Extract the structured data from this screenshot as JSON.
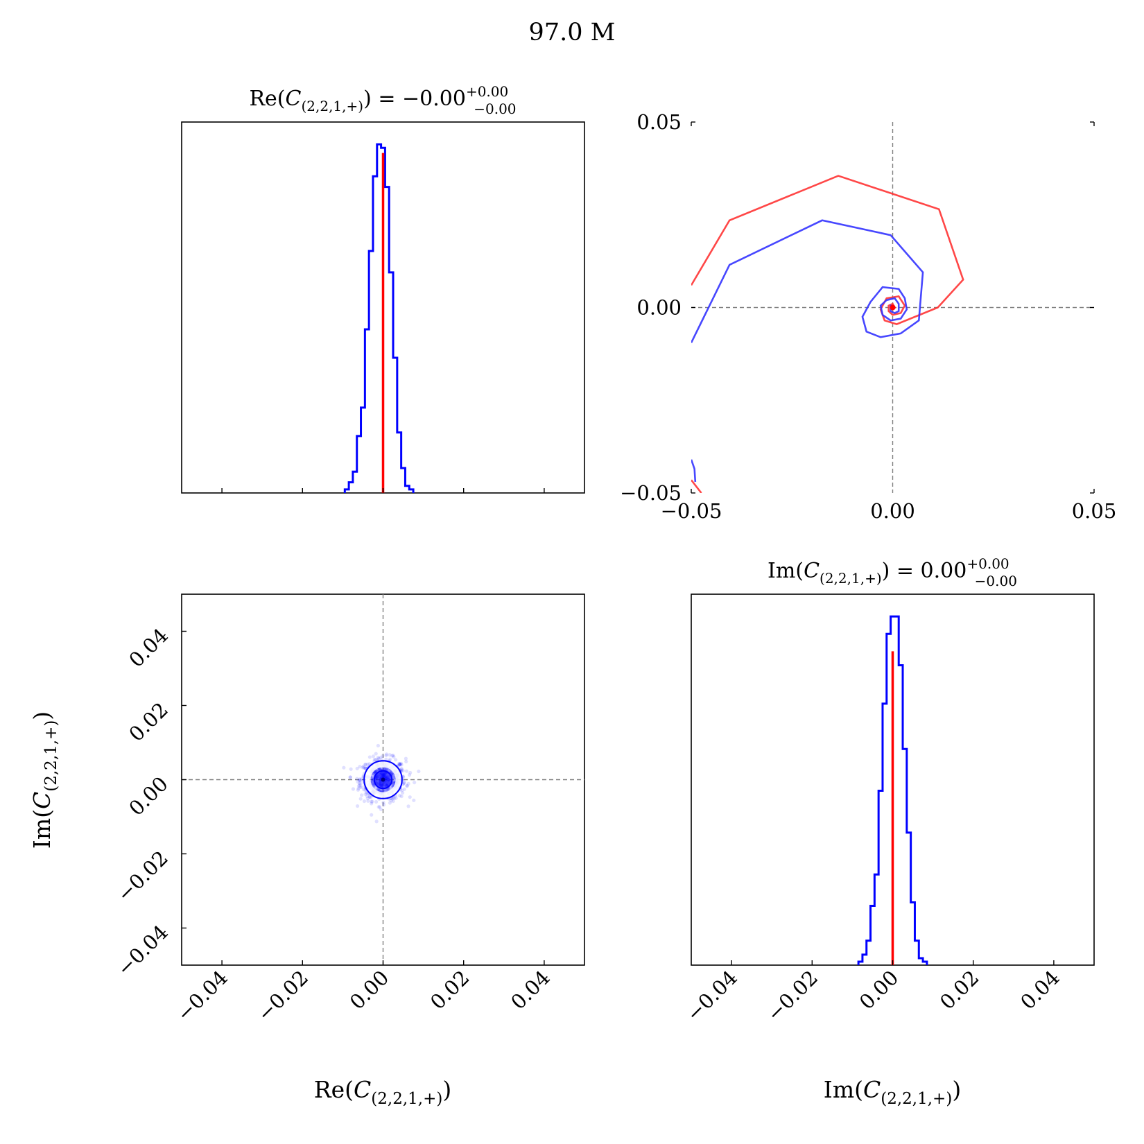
{
  "figure_title": "97.0 M",
  "labels": {
    "re": "Re(C(2,2,1,+))",
    "im": "Im(C(2,2,1,+))"
  },
  "titles": {
    "re": "Re(C(2,2,1,+)) = -0.00 +0.00 -0.00",
    "im": "Im(C(2,2,1,+)) = 0.00 +0.00 -0.00"
  },
  "colors": {
    "hist": "#0000ff",
    "truth": "#ff0000",
    "path_red": "#ff3333",
    "path_blue": "#3333ff",
    "guide": "#808080",
    "scatter": "#0000ff"
  },
  "chart_data": [
    {
      "type": "histogram",
      "panel": "top-left",
      "variable": "Re(C(2,2,1,+))",
      "title": "Re(C(2,2,1,+)) = -0.00 +0.00 -0.00",
      "xlim": [
        -0.05,
        0.05
      ],
      "xticks": [
        -0.04,
        -0.02,
        0.0,
        0.02,
        0.04
      ],
      "show_tick_labels": false,
      "bin_edges_start": -0.0095,
      "bin_width": 0.001,
      "counts": [
        1,
        3,
        6,
        16,
        24,
        46,
        68,
        89,
        98,
        97,
        86,
        62,
        38,
        17,
        7,
        2,
        1
      ],
      "truth": 0.0,
      "truth_height": 0.975
    },
    {
      "type": "line",
      "panel": "top-right",
      "xlim": [
        -0.05,
        0.05
      ],
      "ylim": [
        -0.05,
        0.05
      ],
      "xticks": [
        "-0.05",
        "0.00",
        "0.05"
      ],
      "yticks": [
        "-0.05",
        "0.00",
        "0.05"
      ],
      "series": [
        {
          "color": "red",
          "x": [
            -0.05,
            -0.0405,
            -0.0135,
            0.0115,
            0.0175,
            0.0112,
            0.001,
            -0.002,
            -0.003,
            -0.0015,
            0.0015,
            0.003,
            0.002,
            0.0,
            -0.001,
            -0.001,
            0.0,
            0.0005,
            0.0
          ],
          "y": [
            0.006,
            0.0235,
            0.0355,
            0.0265,
            0.0075,
            0.0,
            -0.0045,
            -0.0035,
            -0.0005,
            0.0025,
            0.003,
            0.0005,
            -0.0015,
            -0.002,
            -0.001,
            0.0005,
            0.001,
            0.0,
            0.0
          ]
        },
        {
          "color": "red",
          "x": [
            -0.05,
            -0.0475
          ],
          "y": [
            -0.0465,
            -0.05
          ]
        },
        {
          "color": "blue",
          "x": [
            -0.05,
            -0.0405,
            -0.0175,
            -0.0005,
            0.0075,
            0.0065,
            0.002,
            -0.003,
            -0.0065,
            -0.0075,
            -0.0055,
            -0.0025,
            0.0015,
            0.003,
            0.0035,
            0.002,
            -0.0005,
            -0.0025,
            -0.003,
            -0.0015,
            0.0005,
            0.0015,
            0.0015,
            0.0005,
            -0.0005,
            -0.0005,
            0.0
          ],
          "y": [
            -0.0095,
            0.0115,
            0.0235,
            0.0195,
            0.0095,
            -0.0035,
            -0.007,
            -0.008,
            -0.0065,
            -0.0025,
            0.0015,
            0.0055,
            0.005,
            0.0025,
            -0.0005,
            -0.003,
            -0.0035,
            -0.002,
            0.0005,
            0.002,
            0.0025,
            0.001,
            -0.001,
            -0.0015,
            -0.001,
            0.0005,
            0.0005
          ]
        },
        {
          "color": "blue",
          "x": [
            -0.05,
            -0.0492,
            -0.049
          ],
          "y": [
            -0.041,
            -0.0435,
            -0.047
          ]
        }
      ],
      "points": [
        {
          "color": "red",
          "x": 0.0,
          "y": 0.0
        }
      ]
    },
    {
      "type": "scatter",
      "panel": "bottom-left",
      "xlabel": "Re(C(2,2,1,+))",
      "ylabel": "Im(C(2,2,1,+))",
      "xlim": [
        -0.05,
        0.05
      ],
      "ylim": [
        -0.05,
        0.05
      ],
      "xticks": [
        "-0.04",
        "-0.02",
        "0.00",
        "0.02",
        "0.04"
      ],
      "yticks": [
        "-0.04",
        "-0.02",
        "0.00",
        "0.02",
        "0.04"
      ],
      "guides": {
        "x": 0.0,
        "y": 0.0
      },
      "center": [
        0.0,
        0.0
      ],
      "spread": 0.0028,
      "contours": [
        {
          "level": "outer",
          "radius": 0.0047
        },
        {
          "level": "inner",
          "radius": 0.0022
        }
      ]
    },
    {
      "type": "histogram",
      "panel": "bottom-right",
      "variable": "Im(C(2,2,1,+))",
      "title": "Im(C(2,2,1,+)) = 0.00 +0.00 -0.00",
      "xlabel": "Im(C(2,2,1,+))",
      "xlim": [
        -0.05,
        0.05
      ],
      "xticks": [
        "-0.04",
        "-0.02",
        "0.00",
        "0.02",
        "0.04"
      ],
      "bin_edges_start": -0.0085,
      "bin_width": 0.001,
      "counts": [
        1,
        3,
        7,
        17,
        26,
        50,
        75,
        95,
        100,
        100,
        86,
        62,
        38,
        18,
        7,
        2,
        1
      ],
      "truth": 0.0,
      "truth_height": 0.9
    }
  ]
}
